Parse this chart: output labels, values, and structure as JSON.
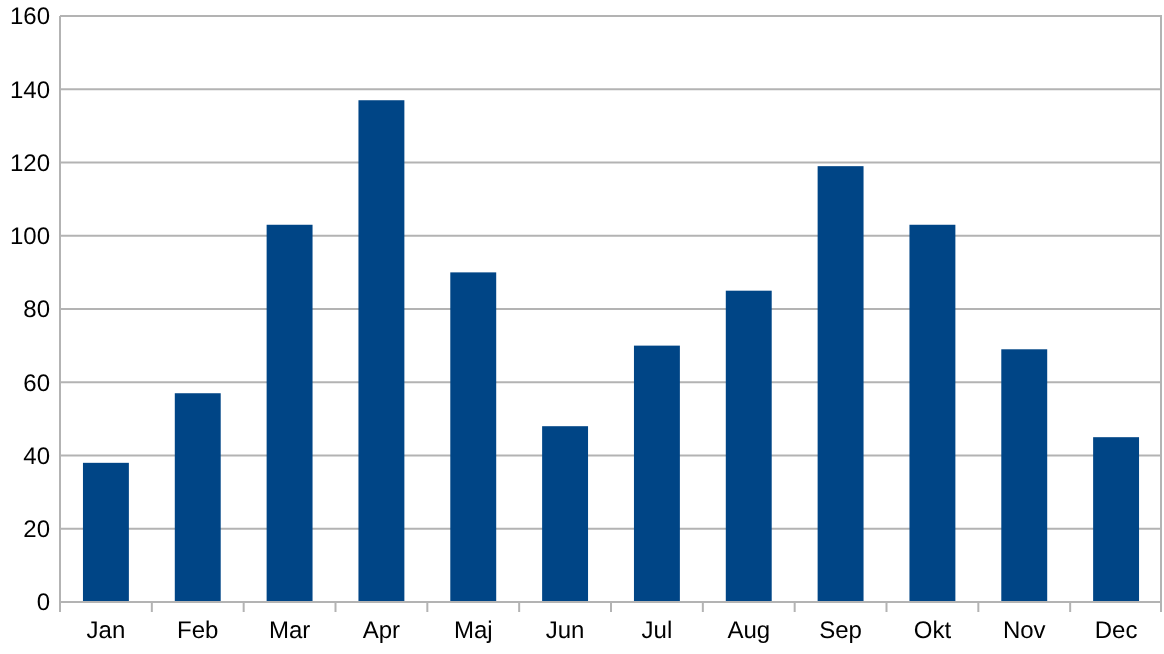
{
  "chart_data": {
    "type": "bar",
    "categories": [
      "Jan",
      "Feb",
      "Mar",
      "Apr",
      "Maj",
      "Jun",
      "Jul",
      "Aug",
      "Sep",
      "Okt",
      "Nov",
      "Dec"
    ],
    "values": [
      38,
      57,
      103,
      137,
      90,
      48,
      70,
      85,
      119,
      103,
      69,
      45
    ],
    "color": "#004586",
    "ylim": [
      0,
      160
    ],
    "yticks": [
      0,
      20,
      40,
      60,
      80,
      100,
      120,
      140,
      160
    ],
    "grid": "y"
  }
}
